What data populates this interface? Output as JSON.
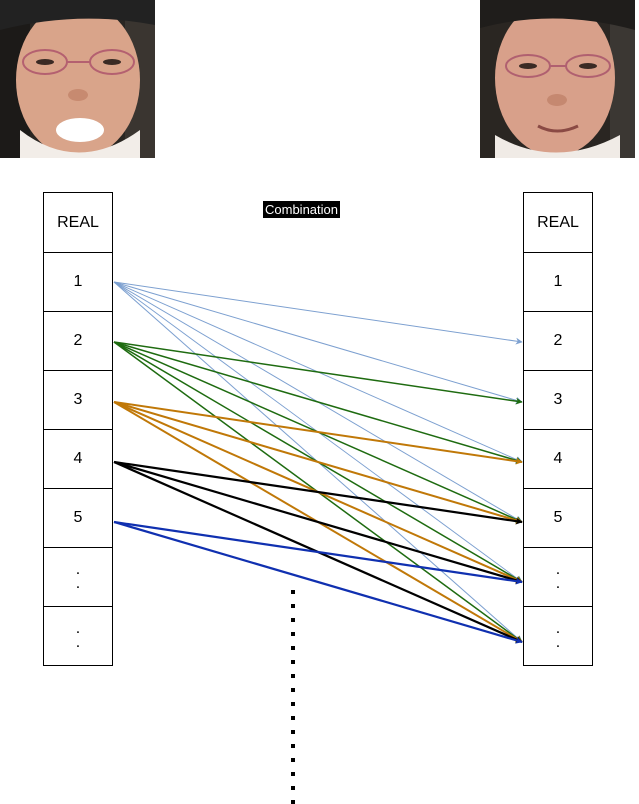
{
  "left_column": {
    "header": "REAL",
    "rows": [
      "1",
      "2",
      "3",
      "4",
      "5",
      ".\n.",
      ".\n."
    ]
  },
  "right_column": {
    "header": "REAL",
    "rows": [
      "1",
      "2",
      "3",
      "4",
      "5",
      ".\n.",
      ".\n."
    ]
  },
  "center_label": "Combination",
  "colors": {
    "source_1": "#7da0d0",
    "source_2": "#1e6b10",
    "source_3": "#c07808",
    "source_4": "#000000",
    "source_5": "#1030b0"
  },
  "connections": [
    {
      "from": 1,
      "to": [
        2,
        3,
        4,
        5,
        6,
        7
      ],
      "color_key": "source_1"
    },
    {
      "from": 2,
      "to": [
        3,
        4,
        5,
        6,
        7
      ],
      "color_key": "source_2"
    },
    {
      "from": 3,
      "to": [
        4,
        5,
        6,
        7
      ],
      "color_key": "source_3"
    },
    {
      "from": 4,
      "to": [
        5,
        6,
        7
      ],
      "color_key": "source_4"
    },
    {
      "from": 5,
      "to": [
        6,
        7
      ],
      "color_key": "source_5"
    }
  ]
}
